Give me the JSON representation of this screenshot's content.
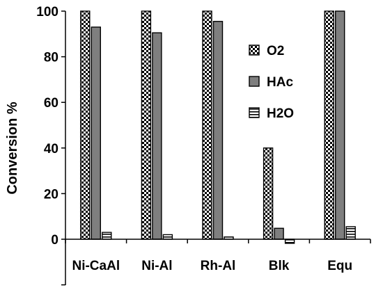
{
  "chart_data": {
    "type": "bar",
    "categories": [
      "Ni-CaAl",
      "Ni-Al",
      "Rh-Al",
      "Blk",
      "Equ"
    ],
    "series": [
      {
        "name": "O2",
        "pattern": "checker",
        "values": [
          100,
          100,
          100,
          40,
          100
        ]
      },
      {
        "name": "HAc",
        "pattern": "solid-gray",
        "values": [
          93,
          90.5,
          95.5,
          4.8,
          100
        ]
      },
      {
        "name": "H2O",
        "pattern": "hstripe",
        "values": [
          3,
          2,
          1,
          -1.8,
          5.5
        ]
      }
    ],
    "title": "",
    "xlabel": "",
    "ylabel": "Conversion %",
    "ylim": [
      0,
      100
    ],
    "yaxis_min_drawn": -20,
    "yticks": [
      "0",
      "20",
      "40",
      "60",
      "80",
      "100"
    ],
    "yticks_values": [
      0,
      20,
      40,
      60,
      80,
      100
    ],
    "legend_position": "right",
    "grid": false,
    "colors": {
      "hac_fill": "#7f7f7f",
      "outline": "#000000",
      "background": "#ffffff"
    }
  }
}
